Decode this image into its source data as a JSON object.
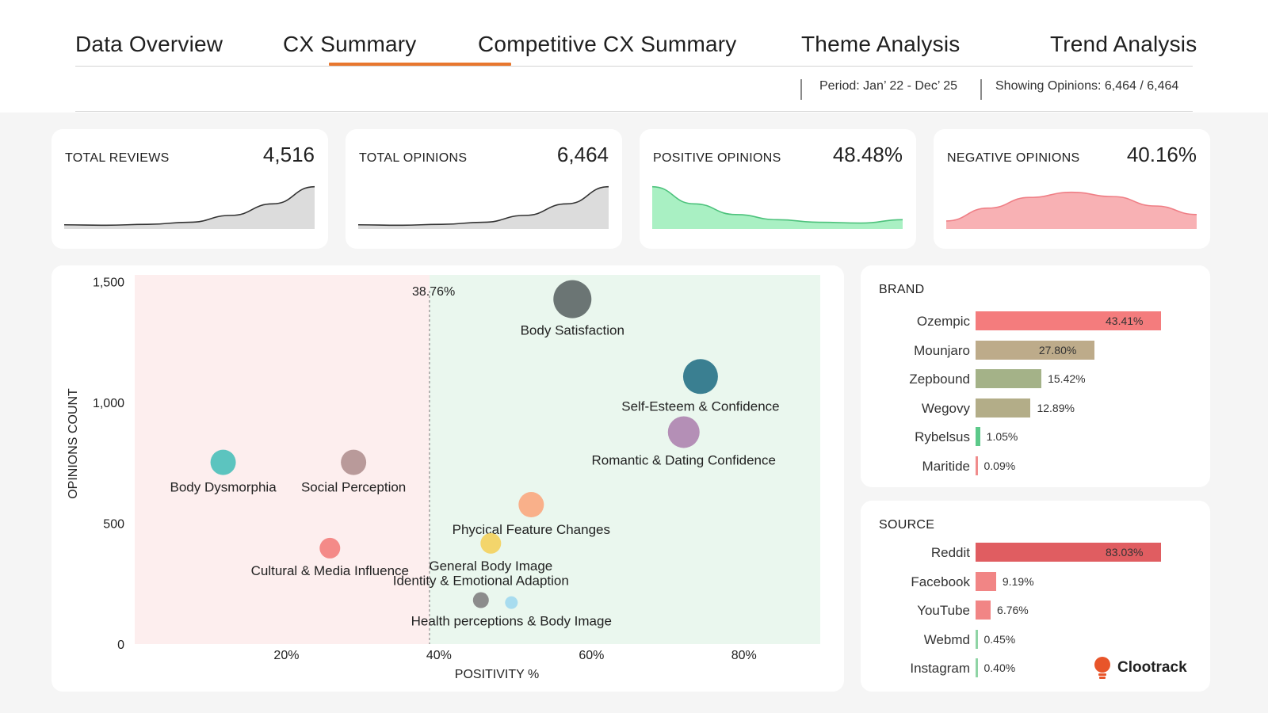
{
  "tabs": [
    {
      "label": "Data Overview"
    },
    {
      "label": "CX Summary"
    },
    {
      "label": "Competitive CX Summary"
    },
    {
      "label": "Theme Analysis"
    },
    {
      "label": "Trend Analysis"
    }
  ],
  "active_tab": "CX Summary",
  "header": {
    "period": "Period: Jan’ 22 - Dec’ 25",
    "showing": "Showing Opinions: 6,464 / 6,464"
  },
  "kpis": [
    {
      "label": "TOTAL REVIEWS",
      "value": "4,516",
      "trend": [
        0.06,
        0.05,
        0.07,
        0.12,
        0.28,
        0.55,
        0.95
      ],
      "color": "#333333",
      "fill": "#dcdcdc"
    },
    {
      "label": "TOTAL OPINIONS",
      "value": "6,464",
      "trend": [
        0.06,
        0.05,
        0.07,
        0.12,
        0.28,
        0.55,
        0.95
      ],
      "color": "#333333",
      "fill": "#dcdcdc"
    },
    {
      "label": "POSITIVE OPINIONS",
      "value": "48.48%",
      "trend": [
        0.95,
        0.55,
        0.3,
        0.18,
        0.12,
        0.1,
        0.18
      ],
      "color": "#4dc27c",
      "fill": "#a9f0c3"
    },
    {
      "label": "NEGATIVE OPINIONS",
      "value": "40.16%",
      "trend": [
        0.15,
        0.45,
        0.7,
        0.82,
        0.72,
        0.5,
        0.3
      ],
      "color": "#ef7f86",
      "fill": "#f8b1b4"
    }
  ],
  "chart_data": {
    "type": "scatter",
    "xlabel": "POSITIVITY %",
    "ylabel": "OPINIONS COUNT",
    "xlim": [
      0,
      90
    ],
    "ylim": [
      0,
      1550
    ],
    "x_ticks": [
      "20%",
      "40%",
      "60%",
      "80%"
    ],
    "x_tick_values": [
      20,
      40,
      60,
      80
    ],
    "y_ticks": [
      "0",
      "500",
      "1,000",
      "1,500"
    ],
    "y_tick_values": [
      0,
      500,
      1000,
      1500
    ],
    "threshold": {
      "value": 38.76,
      "label": "38.76%"
    },
    "regions": {
      "negative_color": "#fdeeee",
      "positive_color": "#eaf7ee"
    },
    "points": [
      {
        "label": "Body Satisfaction",
        "x": 57.5,
        "y": 1430,
        "size": 24,
        "color": "#6b7574",
        "label_pos": "below"
      },
      {
        "label": "Self-Esteem & Confidence",
        "x": 74.3,
        "y": 1110,
        "size": 22,
        "color": "#3a7f91",
        "label_pos": "below"
      },
      {
        "label": "Romantic & Dating Confidence",
        "x": 72.1,
        "y": 880,
        "size": 20,
        "color": "#b48fb6",
        "label_pos": "below"
      },
      {
        "label": "Body Dysmorphia",
        "x": 11.7,
        "y": 755,
        "size": 16,
        "color": "#5cc4bf",
        "label_pos": "below"
      },
      {
        "label": "Social Perception",
        "x": 28.8,
        "y": 755,
        "size": 16,
        "color": "#b99a9a",
        "label_pos": "below"
      },
      {
        "label": "Phycical Feature Changes",
        "x": 52.1,
        "y": 580,
        "size": 16,
        "color": "#f9b08a",
        "label_pos": "below"
      },
      {
        "label": "Cultural & Media Influence",
        "x": 25.7,
        "y": 400,
        "size": 13,
        "color": "#f48a88",
        "label_pos": "below"
      },
      {
        "label": "General Body Image",
        "x": 46.8,
        "y": 420,
        "size": 13,
        "color": "#f3d56b",
        "label_pos": "below"
      },
      {
        "label": "Identity & Emotional Adaption",
        "x": 45.5,
        "y": 185,
        "size": 10,
        "color": "#8c8c8c",
        "label_pos": "above"
      },
      {
        "label": "Health perceptions & Body Image",
        "x": 49.5,
        "y": 175,
        "size": 8,
        "color": "#a8dcef",
        "label_pos": "below"
      }
    ]
  },
  "brand": {
    "title": "BRAND",
    "items": [
      {
        "label": "Ozempic",
        "value": 43.41,
        "display": "43.41%",
        "color": "#f47c7d"
      },
      {
        "label": "Mounjaro",
        "value": 27.8,
        "display": "27.80%",
        "color": "#bdab8a"
      },
      {
        "label": "Zepbound",
        "value": 15.42,
        "display": "15.42%",
        "color": "#a4b288"
      },
      {
        "label": "Wegovy",
        "value": 12.89,
        "display": "12.89%",
        "color": "#b3ad88"
      },
      {
        "label": "Rybelsus",
        "value": 1.05,
        "display": "1.05%",
        "color": "#5cc98a"
      },
      {
        "label": "Maritide",
        "value": 0.09,
        "display": "0.09%",
        "color": "#f08c8c"
      }
    ]
  },
  "source": {
    "title": "SOURCE",
    "items": [
      {
        "label": "Reddit",
        "value": 83.03,
        "display": "83.03%",
        "color": "#e05d61"
      },
      {
        "label": "Facebook",
        "value": 9.19,
        "display": "9.19%",
        "color": "#f18585"
      },
      {
        "label": "YouTube",
        "value": 6.76,
        "display": "6.76%",
        "color": "#f18585"
      },
      {
        "label": "Webmd",
        "value": 0.45,
        "display": "0.45%",
        "color": "#8fd4a5"
      },
      {
        "label": "Instagram",
        "value": 0.4,
        "display": "0.40%",
        "color": "#8fd4a5"
      }
    ]
  },
  "brand_logo": {
    "name": "Clootrack",
    "icon": "bulb-icon",
    "color": "#e8552a"
  }
}
